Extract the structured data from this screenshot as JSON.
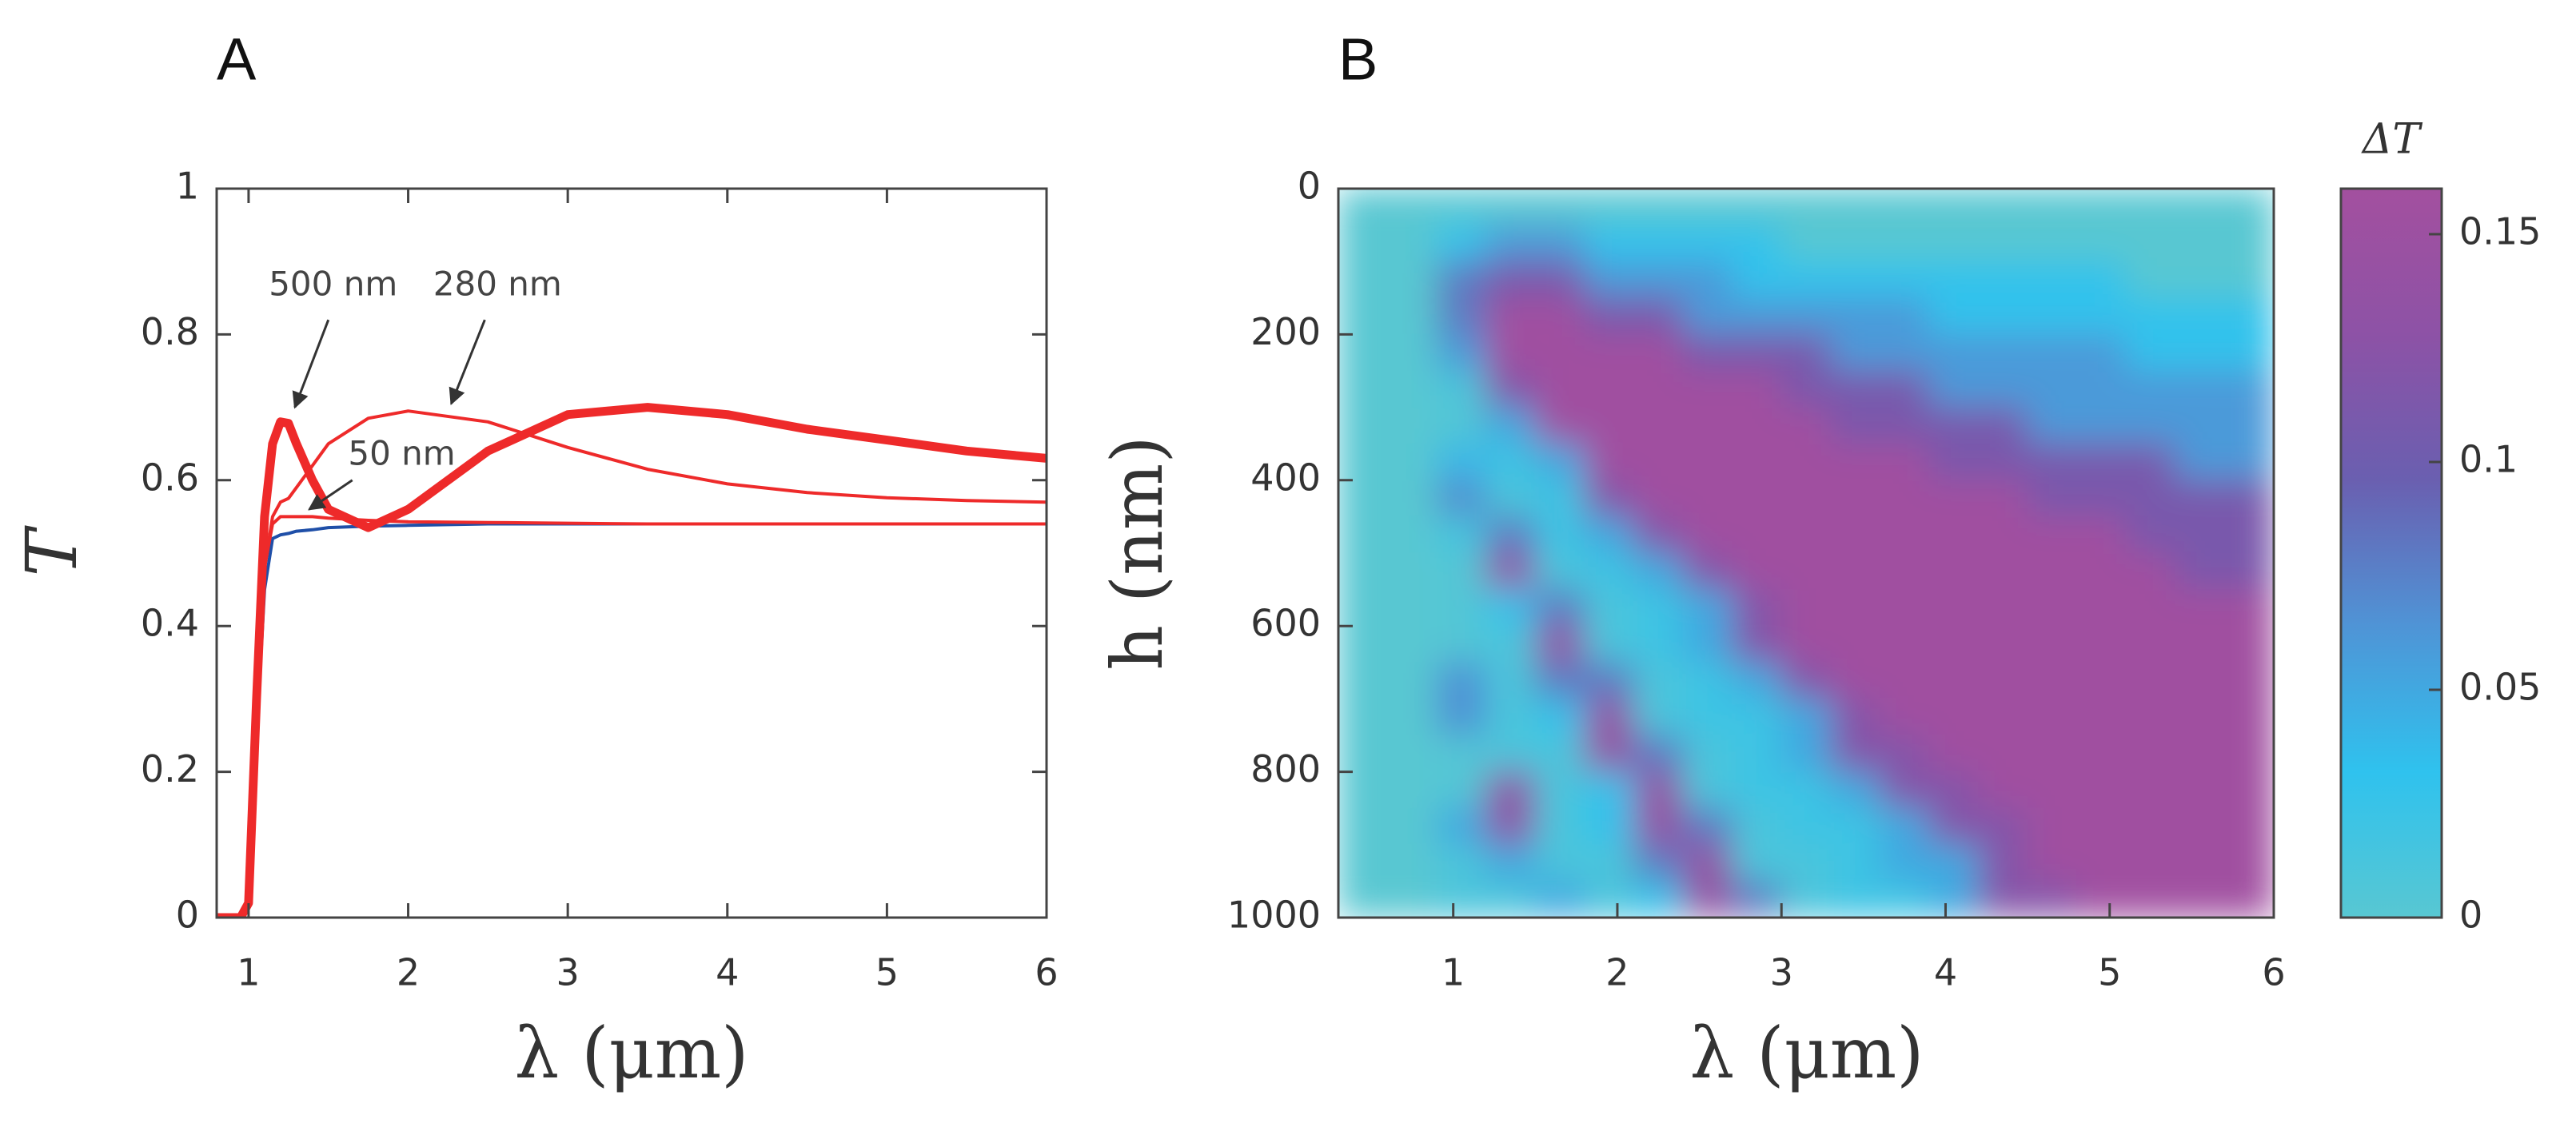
{
  "chart_data": [
    {
      "type": "line",
      "panel": "A",
      "ylabel": "T",
      "xlabel": "λ (μm)",
      "xlim": [
        0.8,
        6
      ],
      "ylim": [
        0,
        1
      ],
      "xticks": [
        1,
        2,
        3,
        4,
        5,
        6
      ],
      "yticks": [
        0,
        0.2,
        0.4,
        0.6,
        0.8,
        1
      ],
      "x": [
        0.8,
        0.95,
        1.0,
        1.05,
        1.1,
        1.15,
        1.2,
        1.25,
        1.3,
        1.4,
        1.5,
        1.75,
        2,
        2.5,
        3,
        3.5,
        4,
        4.5,
        5,
        5.5,
        6
      ],
      "series": [
        {
          "color": "#1f4fa8",
          "values": [
            0,
            0,
            0.02,
            0.25,
            0.45,
            0.52,
            0.525,
            0.527,
            0.53,
            0.532,
            0.535,
            0.537,
            0.538,
            0.54,
            0.54,
            0.54,
            0.54,
            0.54,
            0.54,
            0.54,
            0.54
          ]
        },
        {
          "color": "#ee2a2a",
          "values": [
            0,
            0,
            0.02,
            0.27,
            0.48,
            0.54,
            0.55,
            0.55,
            0.55,
            0.55,
            0.548,
            0.545,
            0.543,
            0.542,
            0.541,
            0.54,
            0.54,
            0.54,
            0.54,
            0.54,
            0.54
          ]
        },
        {
          "color": "#ee2a2a",
          "values": [
            0,
            0,
            0.02,
            0.27,
            0.48,
            0.55,
            0.57,
            0.575,
            0.59,
            0.62,
            0.65,
            0.685,
            0.695,
            0.68,
            0.645,
            0.615,
            0.595,
            0.583,
            0.576,
            0.572,
            0.57
          ]
        },
        {
          "color": "#ee2a2a",
          "values": [
            0,
            0,
            0.02,
            0.3,
            0.55,
            0.65,
            0.68,
            0.678,
            0.65,
            0.6,
            0.56,
            0.535,
            0.56,
            0.64,
            0.69,
            0.7,
            0.69,
            0.67,
            0.655,
            0.64,
            0.63
          ]
        }
      ],
      "annotations": [
        "500 nm",
        "280 nm",
        "50 nm"
      ]
    },
    {
      "type": "heatmap",
      "panel": "B",
      "ylabel": "h (nm)",
      "xlabel": "λ (μm)",
      "xlim": [
        0.3,
        6
      ],
      "ylim": [
        0,
        1000
      ],
      "y_reversed": true,
      "xticks": [
        1,
        2,
        3,
        4,
        5,
        6
      ],
      "yticks": [
        0,
        200,
        400,
        600,
        800,
        1000
      ],
      "colorbar_title": "ΔT",
      "clim": [
        0,
        0.16
      ],
      "cticks": [
        0,
        0.05,
        0.1,
        0.15
      ],
      "colormap": [
        "#58c7d2",
        "#2fc2ee",
        "#4f94d6",
        "#6a5fb0",
        "#8d52a6",
        "#a3509f"
      ],
      "x": [
        0.45,
        0.75,
        1.05,
        1.35,
        1.65,
        1.95,
        2.25,
        2.55,
        2.85,
        3.15,
        3.45,
        3.75,
        4.05,
        4.35,
        4.65,
        4.95,
        5.25,
        5.55,
        5.85
      ],
      "y": [
        25,
        75,
        125,
        175,
        225,
        275,
        325,
        375,
        425,
        475,
        525,
        575,
        625,
        675,
        725,
        775,
        825,
        875,
        925,
        975
      ],
      "z": [
        [
          0,
          0,
          0,
          0,
          0,
          0,
          0,
          0,
          0,
          0,
          0,
          0,
          0,
          0,
          0,
          0,
          0,
          0,
          0
        ],
        [
          0,
          0,
          0.03,
          0.06,
          0.06,
          0.03,
          0.03,
          0.03,
          0.03,
          0,
          0,
          0,
          0,
          0,
          0,
          0,
          0,
          0,
          0
        ],
        [
          0,
          0,
          0.08,
          0.11,
          0.11,
          0.06,
          0.06,
          0.06,
          0.03,
          0.03,
          0.03,
          0.03,
          0.03,
          0.03,
          0.03,
          0.03,
          0,
          0,
          0
        ],
        [
          0,
          0,
          0.08,
          0.155,
          0.155,
          0.11,
          0.11,
          0.06,
          0.06,
          0.06,
          0.06,
          0.06,
          0.03,
          0.03,
          0.03,
          0.03,
          0.03,
          0.03,
          0.03
        ],
        [
          0,
          0,
          0.06,
          0.155,
          0.155,
          0.155,
          0.155,
          0.11,
          0.11,
          0.11,
          0.06,
          0.06,
          0.06,
          0.06,
          0.06,
          0.06,
          0.03,
          0.03,
          0.03
        ],
        [
          0,
          0,
          0.01,
          0.12,
          0.155,
          0.155,
          0.155,
          0.155,
          0.155,
          0.11,
          0.11,
          0.11,
          0.06,
          0.06,
          0.06,
          0.06,
          0.06,
          0.06,
          0.06
        ],
        [
          0,
          0,
          0.005,
          0.05,
          0.155,
          0.155,
          0.155,
          0.155,
          0.155,
          0.155,
          0.11,
          0.11,
          0.11,
          0.11,
          0.06,
          0.06,
          0.06,
          0.06,
          0.06
        ],
        [
          0,
          0,
          0.04,
          0.02,
          0.05,
          0.155,
          0.155,
          0.155,
          0.155,
          0.155,
          0.155,
          0.155,
          0.11,
          0.11,
          0.11,
          0.11,
          0.11,
          0.06,
          0.06
        ],
        [
          0,
          0,
          0.07,
          0.01,
          0.02,
          0.12,
          0.155,
          0.155,
          0.155,
          0.155,
          0.155,
          0.155,
          0.155,
          0.155,
          0.11,
          0.11,
          0.11,
          0.11,
          0.11
        ],
        [
          0,
          0,
          0.015,
          0.08,
          0.02,
          0.05,
          0.12,
          0.155,
          0.155,
          0.155,
          0.155,
          0.155,
          0.155,
          0.155,
          0.155,
          0.155,
          0.11,
          0.11,
          0.11
        ],
        [
          0,
          0,
          0.005,
          0.14,
          0.01,
          0.02,
          0.05,
          0.12,
          0.155,
          0.155,
          0.155,
          0.155,
          0.155,
          0.155,
          0.155,
          0.155,
          0.155,
          0.11,
          0.11
        ],
        [
          0,
          0,
          0.005,
          0.03,
          0.08,
          0.01,
          0.02,
          0.05,
          0.12,
          0.155,
          0.155,
          0.155,
          0.155,
          0.155,
          0.155,
          0.155,
          0.155,
          0.155,
          0.155
        ],
        [
          0,
          0,
          0.005,
          0.01,
          0.14,
          0.01,
          0.02,
          0.05,
          0.12,
          0.155,
          0.155,
          0.155,
          0.155,
          0.155,
          0.155,
          0.155,
          0.155,
          0.155,
          0.155
        ],
        [
          0,
          0,
          0.065,
          0.01,
          0.08,
          0.08,
          0.01,
          0.02,
          0.05,
          0.12,
          0.155,
          0.155,
          0.155,
          0.155,
          0.155,
          0.155,
          0.155,
          0.155,
          0.155
        ],
        [
          0,
          0,
          0.065,
          0.01,
          0.03,
          0.14,
          0.01,
          0.02,
          0.02,
          0.05,
          0.12,
          0.155,
          0.155,
          0.155,
          0.155,
          0.155,
          0.155,
          0.155,
          0.155
        ],
        [
          0,
          0,
          0.005,
          0.01,
          0.01,
          0.14,
          0.08,
          0.01,
          0.02,
          0.05,
          0.12,
          0.12,
          0.155,
          0.155,
          0.155,
          0.155,
          0.155,
          0.155,
          0.155
        ],
        [
          0,
          0,
          0.005,
          0.13,
          0.01,
          0.03,
          0.14,
          0.01,
          0.02,
          0.02,
          0.05,
          0.12,
          0.12,
          0.155,
          0.155,
          0.155,
          0.155,
          0.155,
          0.155
        ],
        [
          0,
          0,
          0.05,
          0.13,
          0.01,
          0.03,
          0.14,
          0.08,
          0.01,
          0.02,
          0.02,
          0.05,
          0.12,
          0.12,
          0.155,
          0.155,
          0.155,
          0.155,
          0.155
        ],
        [
          0,
          0,
          0.01,
          0.05,
          0.01,
          0.01,
          0.08,
          0.14,
          0.01,
          0.01,
          0.02,
          0.05,
          0.05,
          0.12,
          0.155,
          0.155,
          0.155,
          0.155,
          0.155
        ],
        [
          0,
          0,
          0.01,
          0.01,
          0.05,
          0.01,
          0.03,
          0.14,
          0.08,
          0.01,
          0.02,
          0.02,
          0.05,
          0.12,
          0.12,
          0.155,
          0.155,
          0.155,
          0.155
        ]
      ]
    }
  ]
}
